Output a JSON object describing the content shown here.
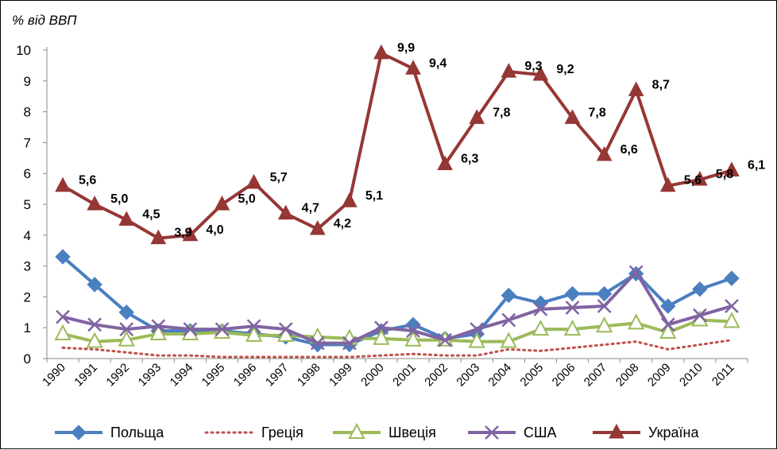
{
  "chart_data": {
    "type": "line",
    "ylabel": "% від ВВП",
    "ylim": [
      0,
      10
    ],
    "yticks": [
      0,
      1,
      2,
      3,
      4,
      5,
      6,
      7,
      8,
      9,
      10
    ],
    "grid": false,
    "legend": "bottom",
    "categories": [
      "1990",
      "1991",
      "1992",
      "1993",
      "1994",
      "1995",
      "1996",
      "1997",
      "1998",
      "1999",
      "2000",
      "2001",
      "2002",
      "2003",
      "2004",
      "2005",
      "2006",
      "2007",
      "2008",
      "2009",
      "2010",
      "2011"
    ],
    "series": [
      {
        "name": "Польща",
        "color": "#4a7fc0",
        "style": "line-diamond",
        "values": [
          3.3,
          2.4,
          1.5,
          0.9,
          0.9,
          0.9,
          0.8,
          0.7,
          0.45,
          0.45,
          0.9,
          1.1,
          0.65,
          0.8,
          2.05,
          1.8,
          2.1,
          2.1,
          2.75,
          1.7,
          2.25,
          2.6
        ]
      },
      {
        "name": "Греція",
        "color": "#c0504d",
        "style": "dotted",
        "values": [
          0.35,
          0.3,
          0.2,
          0.1,
          0.1,
          0.05,
          0.05,
          0.05,
          0.05,
          0.05,
          0.1,
          0.15,
          0.1,
          0.1,
          0.3,
          0.25,
          0.35,
          0.45,
          0.55,
          0.3,
          0.45,
          0.6
        ]
      },
      {
        "name": "Швеція",
        "color": "#9bbb59",
        "style": "line-triangle-open",
        "values": [
          0.8,
          0.55,
          0.6,
          0.8,
          0.8,
          0.85,
          0.75,
          0.75,
          0.7,
          0.65,
          0.65,
          0.6,
          0.6,
          0.55,
          0.55,
          0.95,
          0.95,
          1.05,
          1.15,
          0.85,
          1.25,
          1.2
        ]
      },
      {
        "name": "США",
        "color": "#8064a2",
        "style": "line-x",
        "values": [
          1.35,
          1.1,
          0.95,
          1.05,
          0.95,
          0.95,
          1.05,
          0.95,
          0.5,
          0.5,
          1.0,
          0.9,
          0.6,
          0.95,
          1.25,
          1.6,
          1.65,
          1.7,
          2.8,
          1.1,
          1.4,
          1.7
        ]
      },
      {
        "name": "Україна",
        "color": "#953735",
        "style": "line-triangle",
        "values": [
          5.6,
          5.0,
          4.5,
          3.9,
          4.0,
          5.0,
          5.7,
          4.7,
          4.2,
          5.1,
          9.9,
          9.4,
          6.3,
          7.8,
          9.3,
          9.2,
          7.8,
          6.6,
          8.7,
          5.6,
          5.8,
          6.1
        ],
        "data_labels": [
          "5,6",
          "5,0",
          "4,5",
          "3,9",
          "4,0",
          "5,0",
          "5,7",
          "4,7",
          "4,2",
          "5,1",
          "9,9",
          "9,4",
          "6,3",
          "7,8",
          "9,3",
          "9,2",
          "7,8",
          "6,6",
          "8,7",
          "5,6",
          "5,8",
          "6,1"
        ]
      }
    ]
  }
}
